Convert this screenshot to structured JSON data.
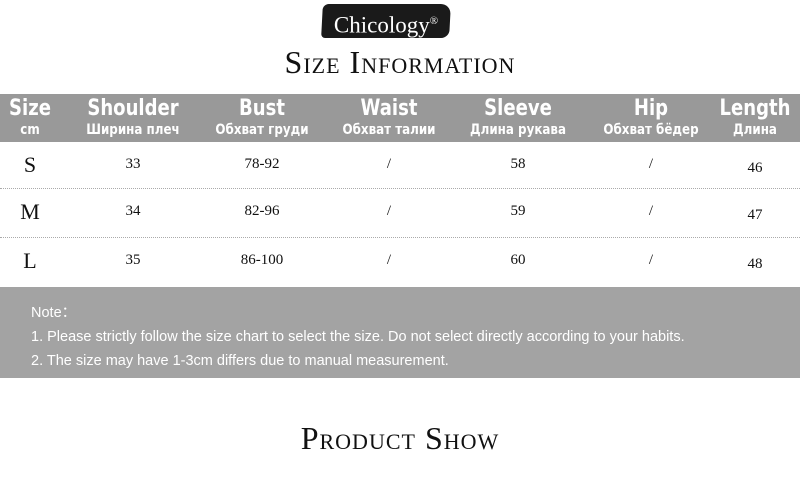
{
  "brand": {
    "logo_text": "Chicology",
    "registered": "®"
  },
  "size_title": "Size Information",
  "table": {
    "headers": [
      {
        "en": "Size",
        "ru": "cm"
      },
      {
        "en": "Shoulder",
        "ru": "Ширина плеч"
      },
      {
        "en": "Bust",
        "ru": "Обхват груди"
      },
      {
        "en": "Waist",
        "ru": "Обхват талии"
      },
      {
        "en": "Sleeve",
        "ru": "Длина рукава"
      },
      {
        "en": "Hip",
        "ru": "Обхват бёдер"
      },
      {
        "en": "Length",
        "ru": "Длина"
      }
    ],
    "rows": [
      [
        "S",
        "33",
        "78-92",
        "/",
        "58",
        "/",
        "46"
      ],
      [
        "M",
        "34",
        "82-96",
        "/",
        "59",
        "/",
        "47"
      ],
      [
        "L",
        "35",
        "86-100",
        "/",
        "60",
        "/",
        "48"
      ]
    ]
  },
  "note": {
    "label": "Note：",
    "lines": [
      "1. Please strictly follow the size chart to select the size. Do not select directly according to your habits.",
      "2. The size may have 1-3cm differs due to manual measurement."
    ]
  },
  "product_title": "Product Show",
  "colors": {
    "header_bg": "#999999",
    "note_bg": "#a3a3a3"
  }
}
